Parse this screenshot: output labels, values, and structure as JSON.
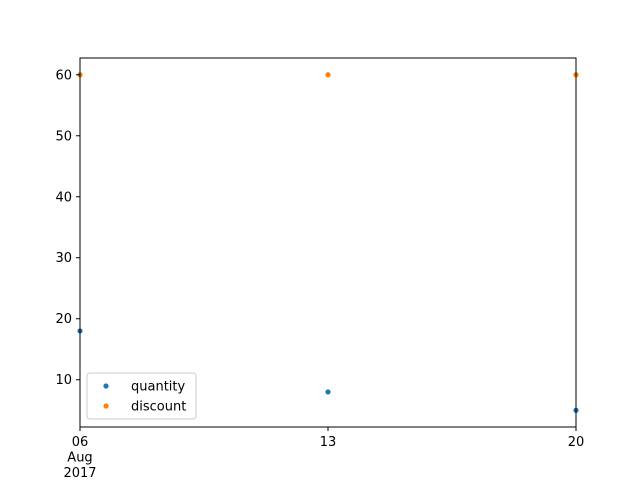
{
  "chart_data": {
    "type": "scatter",
    "x": [
      "2017-08-06",
      "2017-08-13",
      "2017-08-20"
    ],
    "series": [
      {
        "name": "quantity",
        "color": "#1f77b4",
        "values": [
          18,
          8,
          5
        ]
      },
      {
        "name": "discount",
        "color": "#ff7f0e",
        "values": [
          60,
          60,
          60
        ]
      }
    ],
    "x_ticks": [
      {
        "x": "2017-08-06",
        "lines": [
          "06",
          "Aug",
          "2017"
        ]
      },
      {
        "x": "2017-08-13",
        "lines": [
          "13"
        ]
      },
      {
        "x": "2017-08-20",
        "lines": [
          "20"
        ]
      }
    ],
    "y_ticks": [
      10,
      20,
      30,
      40,
      50,
      60
    ],
    "xlim": [
      "2017-08-06",
      "2017-08-20"
    ],
    "ylim": [
      2.25,
      62.75
    ],
    "grid": false,
    "legend_position": "lower-left",
    "title": "",
    "xlabel": "",
    "ylabel": ""
  }
}
